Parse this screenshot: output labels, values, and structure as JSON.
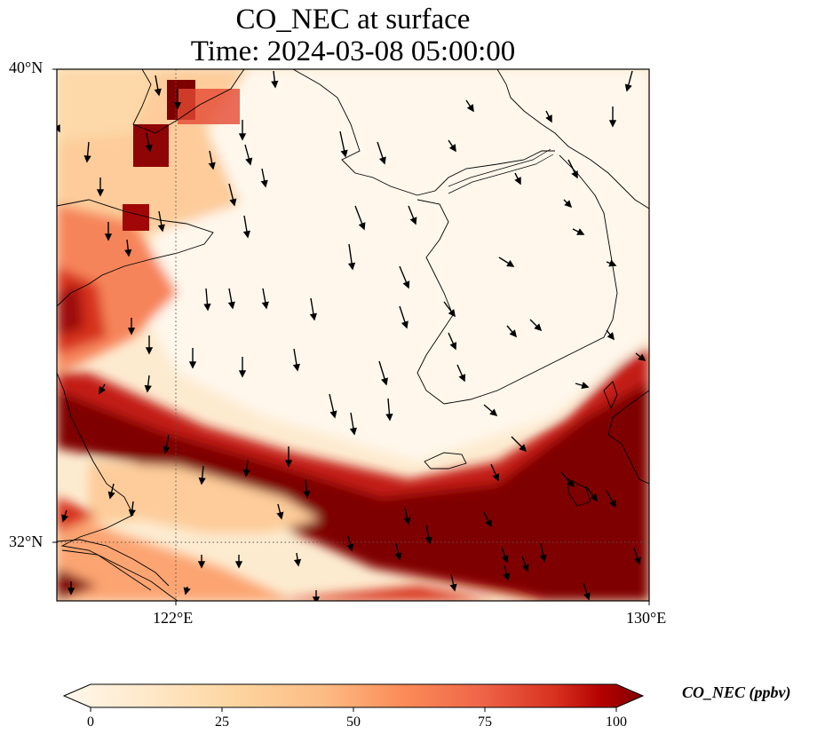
{
  "title": {
    "line1": "CO_NEC at surface",
    "line2": "Time: 2024-03-08 05:00:00"
  },
  "axes": {
    "lat_ticks": [
      "40°N",
      "32°N"
    ],
    "lon_ticks": [
      "122°E",
      "130°E"
    ],
    "lon_range": [
      120,
      130
    ],
    "lat_range": [
      31,
      40
    ],
    "gridlines": "dotted"
  },
  "colorbar": {
    "label": "CO_NEC (ppbv)",
    "ticks": [
      "0",
      "25",
      "50",
      "75",
      "100"
    ],
    "range": [
      0,
      100
    ],
    "colormap": "OrRd",
    "extend": "both"
  },
  "chart_data": {
    "type": "heatmap",
    "variable": "CO_NEC",
    "units": "ppbv",
    "level": "surface",
    "time": "2024-03-08 05:00:00",
    "x_range_lon": [
      120,
      130
    ],
    "y_range_lat": [
      31,
      40
    ],
    "overlay": "wind vectors",
    "colors": {
      "low": "#fff7ec",
      "mid": "#fc8d59",
      "high": "#7f0000"
    }
  }
}
